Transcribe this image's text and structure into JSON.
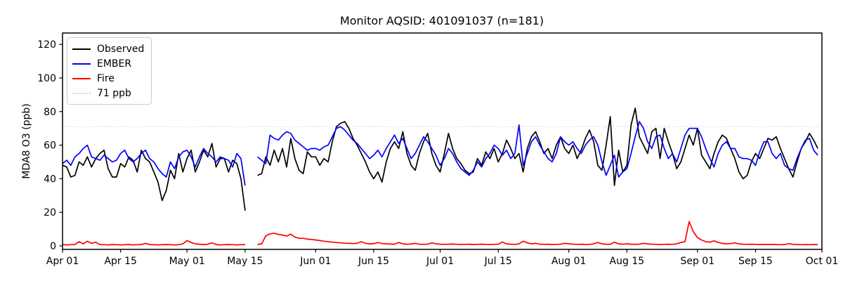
{
  "title": "Monitor AQSID: 401091037 (n=181)",
  "y_axis": {
    "label": "MDA8 O3 (ppb)",
    "ticks": [
      0,
      20,
      40,
      60,
      80,
      100,
      120
    ]
  },
  "x_axis": {
    "ticks": [
      {
        "day": 0,
        "label": "Apr 01"
      },
      {
        "day": 14,
        "label": "Apr 15"
      },
      {
        "day": 30,
        "label": "May 01"
      },
      {
        "day": 44,
        "label": "May 15"
      },
      {
        "day": 61,
        "label": "Jun 01"
      },
      {
        "day": 75,
        "label": "Jun 15"
      },
      {
        "day": 91,
        "label": "Jul 01"
      },
      {
        "day": 105,
        "label": "Jul 15"
      },
      {
        "day": 122,
        "label": "Aug 01"
      },
      {
        "day": 136,
        "label": "Aug 15"
      },
      {
        "day": 153,
        "label": "Sep 01"
      },
      {
        "day": 167,
        "label": "Sep 15"
      },
      {
        "day": 183,
        "label": "Oct 01"
      }
    ]
  },
  "legend": {
    "items": [
      {
        "label": "Observed",
        "color": "#000000",
        "style": "solid"
      },
      {
        "label": "EMBER",
        "color": "#0000ff",
        "style": "solid"
      },
      {
        "label": "Fire",
        "color": "#ff0000",
        "style": "solid"
      },
      {
        "label": "71 ppb",
        "color": "#d3d3d3",
        "style": "dotted"
      }
    ]
  },
  "chart_data": {
    "type": "line",
    "title": "Monitor AQSID: 401091037 (n=181)",
    "xlabel": "",
    "ylabel": "MDA8 O3 (ppb)",
    "x_start_date": "Apr 01",
    "x_end_date": "Oct 01",
    "x_is_daily": true,
    "n_points_label": 181,
    "ylim": [
      -2,
      127
    ],
    "xlim_days": [
      0,
      183
    ],
    "grid": false,
    "legend_position": "upper-left",
    "threshold": {
      "value": 71,
      "label": "71 ppb",
      "color": "#d3d3d3",
      "style": "dotted"
    },
    "missing_days_note": "gap May 16-17 in all series",
    "series": [
      {
        "name": "Observed",
        "color": "#000000",
        "values": [
          48,
          47,
          41,
          42,
          50,
          48,
          53,
          47,
          52,
          55,
          57,
          46,
          41,
          41,
          49,
          47,
          53,
          51,
          44,
          57,
          52,
          50,
          44,
          38,
          27,
          33,
          45,
          40,
          55,
          44,
          52,
          57,
          44,
          50,
          57,
          53,
          61,
          47,
          52,
          52,
          44,
          51,
          49,
          40,
          21,
          null,
          null,
          42,
          43,
          53,
          48,
          57,
          50,
          58,
          47,
          64,
          52,
          45,
          43,
          56,
          53,
          53,
          48,
          52,
          50,
          62,
          71,
          73,
          74,
          70,
          64,
          60,
          55,
          50,
          44,
          40,
          44,
          38,
          50,
          58,
          62,
          58,
          68,
          55,
          48,
          45,
          55,
          62,
          67,
          55,
          48,
          44,
          55,
          67,
          58,
          52,
          49,
          45,
          43,
          44,
          52,
          48,
          56,
          52,
          58,
          50,
          55,
          63,
          58,
          52,
          55,
          44,
          58,
          65,
          68,
          62,
          55,
          58,
          52,
          60,
          65,
          58,
          55,
          60,
          52,
          57,
          64,
          69,
          62,
          48,
          45,
          60,
          77,
          36,
          57,
          44,
          48,
          72,
          82,
          65,
          60,
          55,
          68,
          70,
          52,
          70,
          62,
          55,
          46,
          50,
          58,
          66,
          60,
          70,
          54,
          50,
          46,
          55,
          62,
          66,
          64,
          58,
          52,
          44,
          40,
          42,
          50,
          55,
          52,
          58,
          64,
          63,
          65,
          58,
          52,
          46,
          41,
          50,
          58,
          62,
          67,
          63,
          58
        ]
      },
      {
        "name": "EMBER",
        "color": "#0000ff",
        "values": [
          49,
          51,
          48,
          53,
          55,
          58,
          60,
          53,
          52,
          51,
          54,
          52,
          50,
          51,
          55,
          57,
          52,
          50,
          52,
          55,
          57,
          52,
          50,
          46,
          43,
          41,
          50,
          46,
          53,
          56,
          57,
          53,
          47,
          53,
          58,
          55,
          53,
          50,
          53,
          52,
          51,
          47,
          55,
          52,
          36,
          null,
          null,
          53,
          51,
          49,
          66,
          64,
          63,
          66,
          68,
          67,
          63,
          61,
          59,
          57,
          58,
          58,
          57,
          59,
          60,
          65,
          70,
          71,
          69,
          66,
          63,
          61,
          58,
          55,
          52,
          54,
          57,
          53,
          58,
          62,
          66,
          61,
          64,
          58,
          52,
          55,
          60,
          65,
          62,
          58,
          54,
          48,
          52,
          58,
          55,
          50,
          46,
          44,
          42,
          45,
          50,
          47,
          52,
          55,
          60,
          58,
          54,
          57,
          52,
          55,
          72,
          48,
          55,
          62,
          65,
          60,
          56,
          52,
          50,
          55,
          65,
          62,
          60,
          62,
          58,
          55,
          60,
          63,
          65,
          60,
          50,
          42,
          48,
          54,
          41,
          44,
          46,
          55,
          65,
          74,
          70,
          62,
          58,
          65,
          66,
          58,
          52,
          55,
          50,
          58,
          66,
          70,
          70,
          70,
          65,
          58,
          52,
          47,
          55,
          60,
          62,
          58,
          58,
          53,
          52,
          52,
          51,
          48,
          56,
          62,
          62,
          55,
          52,
          55,
          48,
          46,
          45,
          52,
          58,
          63,
          64,
          57,
          54
        ]
      },
      {
        "name": "Fire",
        "color": "#ff0000",
        "values": [
          0.8,
          0.6,
          0.7,
          0.8,
          2.5,
          1.2,
          2.8,
          1.5,
          2.2,
          0.8,
          0.7,
          0.6,
          0.8,
          0.7,
          0.6,
          0.7,
          0.8,
          0.6,
          0.7,
          0.8,
          1.5,
          0.8,
          0.7,
          0.6,
          0.7,
          0.8,
          0.7,
          0.6,
          0.7,
          1.2,
          3.2,
          2.0,
          1.2,
          1.0,
          0.8,
          1.0,
          1.8,
          0.8,
          0.6,
          0.7,
          0.8,
          0.7,
          0.6,
          0.7,
          0.8,
          null,
          null,
          0.8,
          1.2,
          6.0,
          7.2,
          7.5,
          6.8,
          6.5,
          5.8,
          7.0,
          5.2,
          4.5,
          4.5,
          4.0,
          3.8,
          3.5,
          3.2,
          2.8,
          2.5,
          2.2,
          2.0,
          1.8,
          1.6,
          1.5,
          1.4,
          1.5,
          2.5,
          1.5,
          1.2,
          1.3,
          2.0,
          1.4,
          1.2,
          1.1,
          1.0,
          2.0,
          1.2,
          1.0,
          1.1,
          1.5,
          1.0,
          0.9,
          1.0,
          1.8,
          1.2,
          1.0,
          0.9,
          1.0,
          1.1,
          0.9,
          0.8,
          0.9,
          1.0,
          0.8,
          0.9,
          1.0,
          0.9,
          0.8,
          0.9,
          1.0,
          2.3,
          1.2,
          1.0,
          0.9,
          1.2,
          2.8,
          1.8,
          1.2,
          1.5,
          1.0,
          0.9,
          1.0,
          0.8,
          0.9,
          1.0,
          1.5,
          1.2,
          1.0,
          0.9,
          1.0,
          0.8,
          0.9,
          1.2,
          2.0,
          1.2,
          1.0,
          0.9,
          2.2,
          1.2,
          1.0,
          1.2,
          1.0,
          0.9,
          1.0,
          1.5,
          1.2,
          1.0,
          0.9,
          0.8,
          0.9,
          1.0,
          0.9,
          1.2,
          2.0,
          2.5,
          14.5,
          8.5,
          5.0,
          3.5,
          2.5,
          2.2,
          3.0,
          2.0,
          1.5,
          1.2,
          1.4,
          1.8,
          1.2,
          1.0,
          0.9,
          1.0,
          0.9,
          0.8,
          0.9,
          0.8,
          0.9,
          0.8,
          0.7,
          0.8,
          1.3,
          0.9,
          0.8,
          0.7,
          0.8,
          0.7,
          0.8,
          0.8
        ]
      }
    ]
  }
}
